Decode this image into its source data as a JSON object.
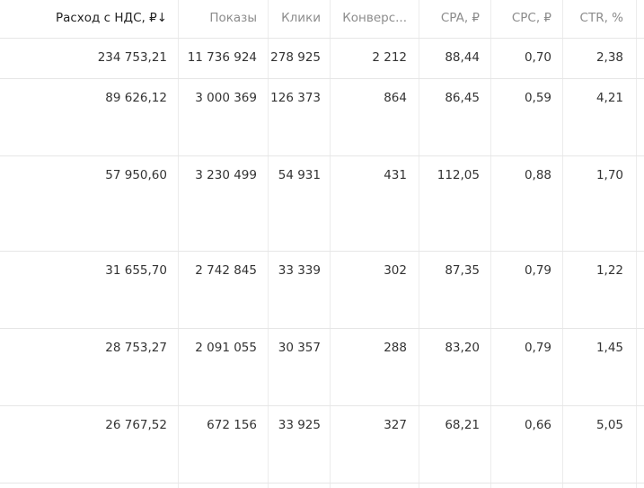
{
  "table": {
    "headers": [
      "Расход с НДС, ₽↓",
      "Показы",
      "Клики",
      "Конверс...",
      "CPA, ₽",
      "CPC, ₽",
      "CTR, %"
    ],
    "rows": [
      [
        "234 753,21",
        "11 736 924",
        "278 925",
        "2 212",
        "88,44",
        "0,70",
        "2,38"
      ],
      [
        "89 626,12",
        "3 000 369",
        "126 373",
        "864",
        "86,45",
        "0,59",
        "4,21"
      ],
      [
        "57 950,60",
        "3 230 499",
        "54 931",
        "431",
        "112,05",
        "0,88",
        "1,70"
      ],
      [
        "31 655,70",
        "2 742 845",
        "33 339",
        "302",
        "87,35",
        "0,79",
        "1,22"
      ],
      [
        "28 753,27",
        "2 091 055",
        "30 357",
        "288",
        "83,20",
        "0,79",
        "1,45"
      ],
      [
        "26 767,52",
        "672 156",
        "33 925",
        "327",
        "68,21",
        "0,66",
        "5,05"
      ]
    ]
  }
}
